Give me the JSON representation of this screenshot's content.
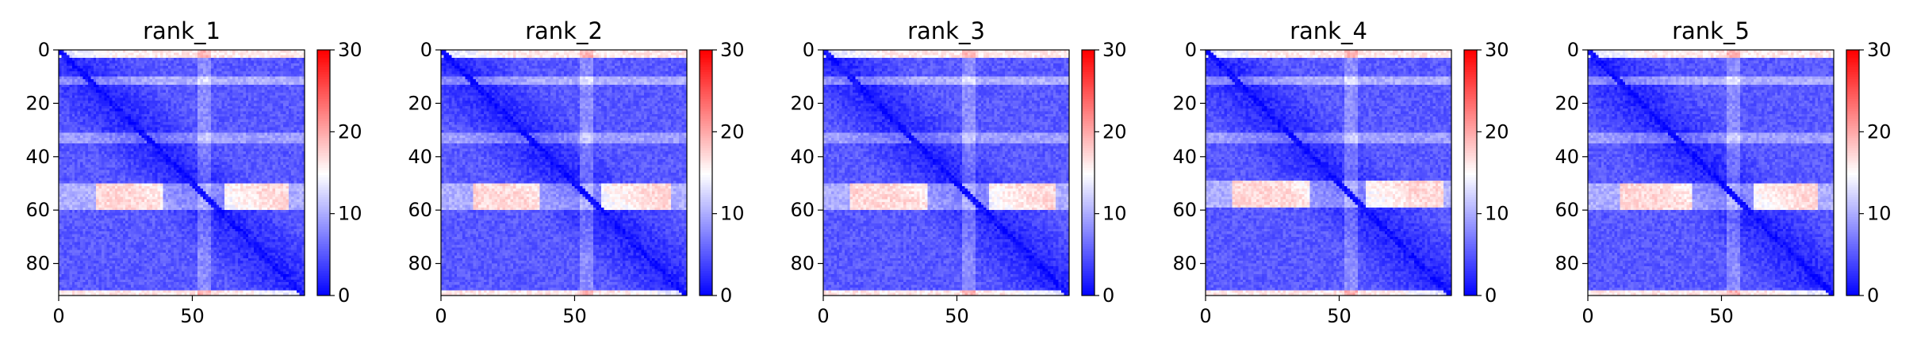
{
  "chart_data": [
    {
      "type": "heatmap",
      "title": "rank_1",
      "xlim": [
        0,
        92
      ],
      "ylim": [
        92,
        0
      ],
      "xticks": [
        0,
        50
      ],
      "yticks": [
        0,
        20,
        40,
        60,
        80
      ],
      "colorbar": {
        "ticks": [
          0,
          10,
          20,
          30
        ],
        "range": [
          0,
          30
        ],
        "colormap": [
          "#0000ff",
          "#ffffff",
          "#ff0000"
        ]
      },
      "hot_band_rows": [
        50,
        59
      ],
      "hot_band_cols": [
        [
          14,
          38
        ],
        [
          62,
          85
        ]
      ]
    },
    {
      "type": "heatmap",
      "title": "rank_2",
      "xlim": [
        0,
        92
      ],
      "ylim": [
        92,
        0
      ],
      "xticks": [
        0,
        50
      ],
      "yticks": [
        0,
        20,
        40,
        60,
        80
      ],
      "colorbar": {
        "ticks": [
          0,
          10,
          20,
          30
        ],
        "range": [
          0,
          30
        ],
        "colormap": [
          "#0000ff",
          "#ffffff",
          "#ff0000"
        ]
      },
      "hot_band_rows": [
        50,
        59
      ],
      "hot_band_cols": [
        [
          12,
          36
        ],
        [
          60,
          85
        ]
      ]
    },
    {
      "type": "heatmap",
      "title": "rank_3",
      "xlim": [
        0,
        92
      ],
      "ylim": [
        92,
        0
      ],
      "xticks": [
        0,
        50
      ],
      "yticks": [
        0,
        20,
        40,
        60,
        80
      ],
      "colorbar": {
        "ticks": [
          0,
          10,
          20,
          30
        ],
        "range": [
          0,
          30
        ],
        "colormap": [
          "#0000ff",
          "#ffffff",
          "#ff0000"
        ]
      },
      "hot_band_rows": [
        50,
        59
      ],
      "hot_band_cols": [
        [
          10,
          38
        ],
        [
          62,
          86
        ]
      ]
    },
    {
      "type": "heatmap",
      "title": "rank_4",
      "xlim": [
        0,
        92
      ],
      "ylim": [
        92,
        0
      ],
      "xticks": [
        0,
        50
      ],
      "yticks": [
        0,
        20,
        40,
        60,
        80
      ],
      "colorbar": {
        "ticks": [
          0,
          10,
          20,
          30
        ],
        "range": [
          0,
          30
        ],
        "colormap": [
          "#0000ff",
          "#ffffff",
          "#ff0000"
        ]
      },
      "hot_band_rows": [
        49,
        58
      ],
      "hot_band_cols": [
        [
          10,
          38
        ],
        [
          60,
          88
        ]
      ]
    },
    {
      "type": "heatmap",
      "title": "rank_5",
      "xlim": [
        0,
        92
      ],
      "ylim": [
        92,
        0
      ],
      "xticks": [
        0,
        50
      ],
      "yticks": [
        0,
        20,
        40,
        60,
        80
      ],
      "colorbar": {
        "ticks": [
          0,
          10,
          20,
          30
        ],
        "range": [
          0,
          30
        ],
        "colormap": [
          "#0000ff",
          "#ffffff",
          "#ff0000"
        ]
      },
      "hot_band_rows": [
        50,
        59
      ],
      "hot_band_cols": [
        [
          12,
          38
        ],
        [
          62,
          85
        ]
      ]
    }
  ]
}
